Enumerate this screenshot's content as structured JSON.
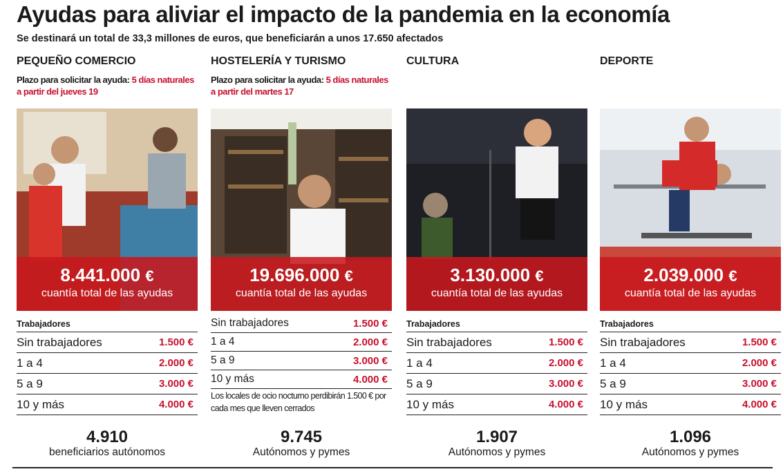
{
  "header": {
    "title": "Ayudas para aliviar el impacto de la pandemia en la economía",
    "subtitle": "Se destinará un total de 33,3 millones de euros, que beneficiarán a unos 17.650 afectados"
  },
  "colors": {
    "accent": "#c8102e",
    "band": "#c8181e"
  },
  "columns": [
    {
      "name": "PEQUEÑO COMERCIO",
      "deadline_label": "Plazo para solicitar la ayuda: ",
      "deadline_value": "5 días naturales a partir del jueves 19",
      "amount": "8.441.000",
      "currency": "€",
      "amount_label": "cuantía total de las ayudas",
      "table_header": "Trabajadores",
      "rows": [
        {
          "label": "Sin trabajadores",
          "value": "1.500 €"
        },
        {
          "label": "1 a 4",
          "value": "2.000 €"
        },
        {
          "label": "5 a 9",
          "value": "3.000 €"
        },
        {
          "label": "10 y más",
          "value": "4.000 €"
        }
      ],
      "stat_number": "4.910",
      "stat_label": "beneficiarios autónomos"
    },
    {
      "name": "HOSTELERÍA Y TURISMO",
      "deadline_label": "Plazo para solicitar la ayuda: ",
      "deadline_value": "5 días naturales a partir del martes 17",
      "amount": "19.696.000",
      "currency": "€",
      "amount_label": "cuantía total de las ayudas",
      "rows": [
        {
          "label": "Sin trabajadores",
          "value": "1.500 €"
        },
        {
          "label": "1 a 4",
          "value": "2.000 €"
        },
        {
          "label": "5 a 9",
          "value": "3.000 €"
        },
        {
          "label": "10 y más",
          "value": "4.000 €"
        }
      ],
      "note": "Los locales de ocio nocturno perdibirán 1.500 € por cada mes que lleven cerrados",
      "stat_number": "9.745",
      "stat_label": "Autónomos y pymes"
    },
    {
      "name": "CULTURA",
      "amount": "3.130.000",
      "currency": "€",
      "amount_label": "cuantía total de las ayudas",
      "table_header": "Trabajadores",
      "rows": [
        {
          "label": "Sin trabajadores",
          "value": "1.500 €"
        },
        {
          "label": "1 a 4",
          "value": "2.000 €"
        },
        {
          "label": "5 a 9",
          "value": "3.000 €"
        },
        {
          "label": "10 y más",
          "value": "4.000 €"
        }
      ],
      "stat_number": "1.907",
      "stat_label": "Autónomos y pymes"
    },
    {
      "name": "DEPORTE",
      "amount": "2.039.000",
      "currency": "€",
      "amount_label": "cuantía total de las ayudas",
      "table_header": "Trabajadores",
      "rows": [
        {
          "label": "Sin trabajadores",
          "value": "1.500 €"
        },
        {
          "label": "1 a 4",
          "value": "2.000 €"
        },
        {
          "label": "5 a 9",
          "value": "3.000 €"
        },
        {
          "label": "10 y más",
          "value": "4.000 €"
        }
      ],
      "stat_number": "1.096",
      "stat_label": "Autónomos y pymes"
    }
  ]
}
